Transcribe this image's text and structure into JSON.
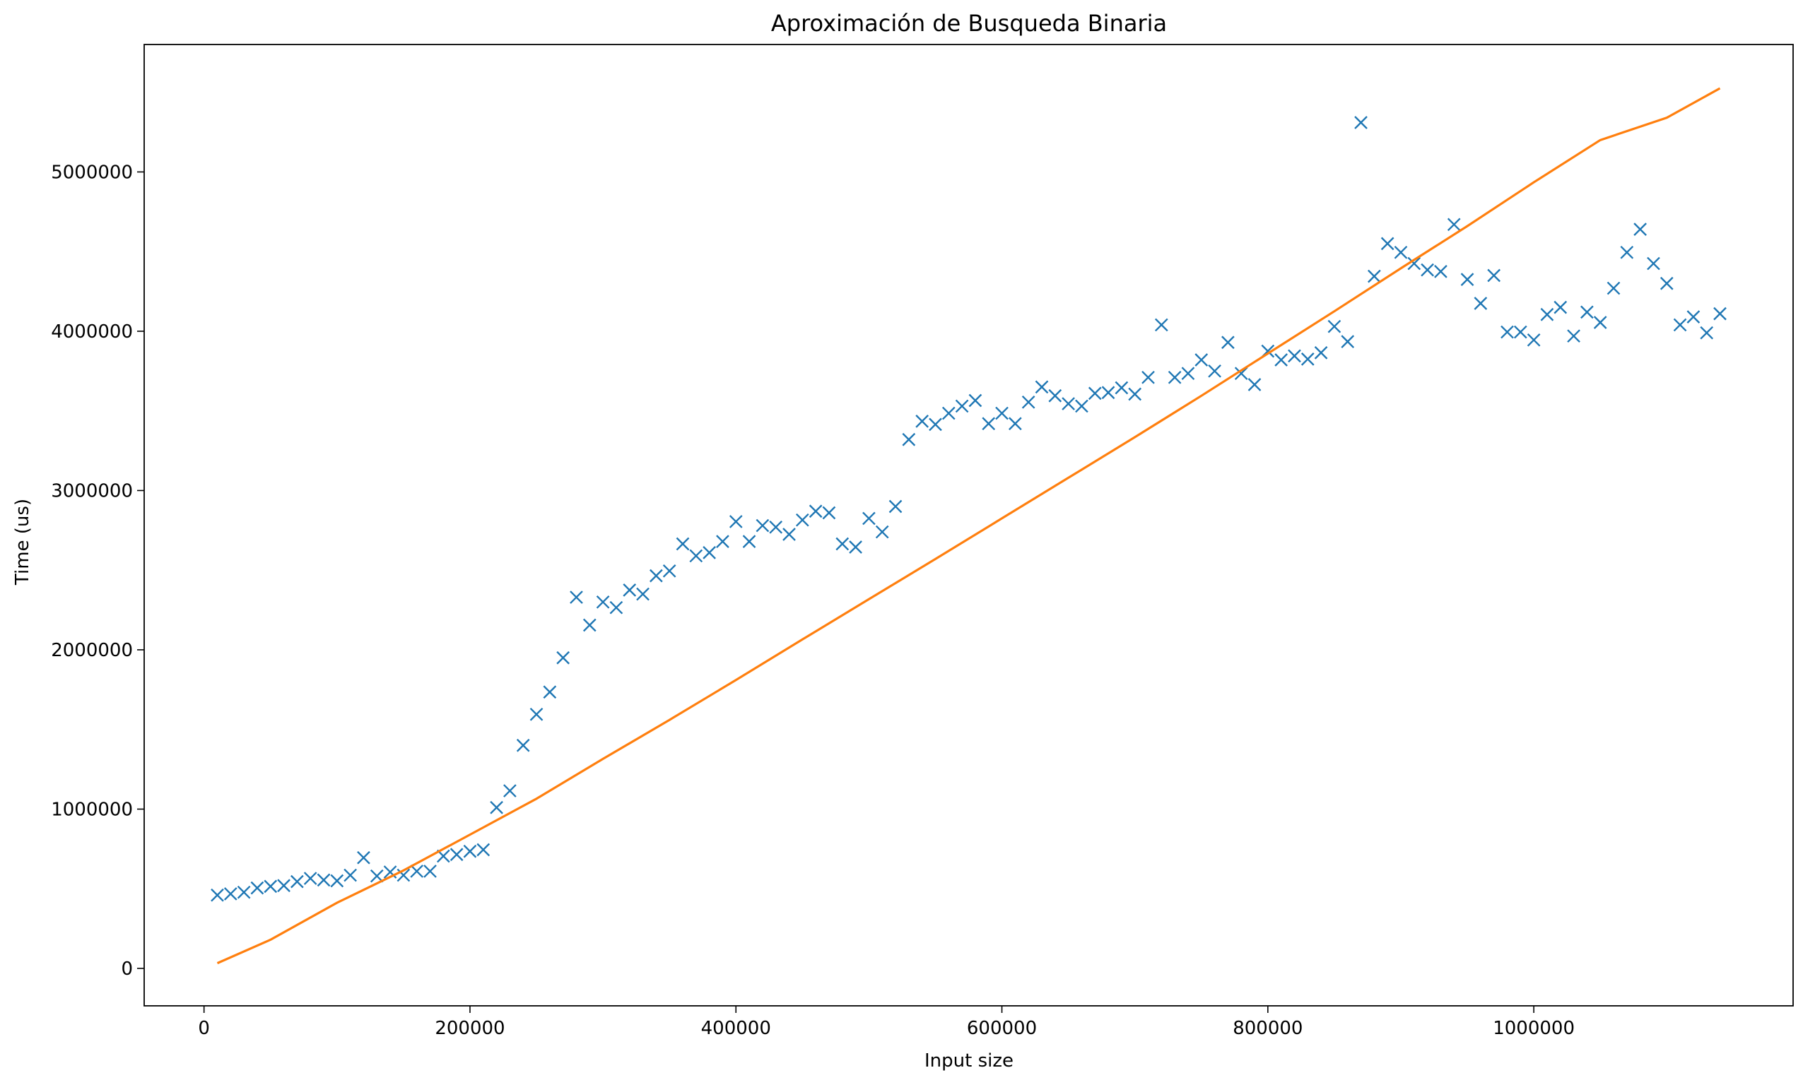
{
  "chart_data": {
    "type": "scatter",
    "title": "Aproximación de Busqueda Binaria",
    "xlabel": "Input size",
    "ylabel": "Time (us)",
    "xlim": [
      -45000,
      1195000
    ],
    "ylim": [
      -235000,
      5800000
    ],
    "x_ticks": [
      0,
      200000,
      400000,
      600000,
      800000,
      1000000
    ],
    "x_tick_labels": [
      "0",
      "200000",
      "400000",
      "600000",
      "800000",
      "1000000"
    ],
    "y_ticks": [
      0,
      1000000,
      2000000,
      3000000,
      4000000,
      5000000
    ],
    "y_tick_labels": [
      "0",
      "1000000",
      "2000000",
      "3000000",
      "4000000",
      "5000000"
    ],
    "grid": false,
    "legend": "none",
    "series": [
      {
        "marker": "x",
        "color": "#1f77b4",
        "x": [
          10000,
          20000,
          30000,
          40000,
          50000,
          60000,
          70000,
          80000,
          90000,
          100000,
          110000,
          120000,
          130000,
          140000,
          150000,
          160000,
          170000,
          180000,
          190000,
          200000,
          210000,
          220000,
          230000,
          240000,
          250000,
          260000,
          270000,
          280000,
          290000,
          300000,
          310000,
          320000,
          330000,
          340000,
          350000,
          360000,
          370000,
          380000,
          390000,
          400000,
          410000,
          420000,
          430000,
          440000,
          450000,
          460000,
          470000,
          480000,
          490000,
          500000,
          510000,
          520000,
          530000,
          540000,
          550000,
          560000,
          570000,
          580000,
          590000,
          600000,
          610000,
          620000,
          630000,
          640000,
          650000,
          660000,
          670000,
          680000,
          690000,
          700000,
          710000,
          720000,
          730000,
          740000,
          750000,
          760000,
          770000,
          780000,
          790000,
          800000,
          810000,
          820000,
          830000,
          840000,
          850000,
          860000,
          870000,
          880000,
          890000,
          900000,
          910000,
          920000,
          930000,
          940000,
          950000,
          960000,
          970000,
          980000,
          990000,
          1000000,
          1010000,
          1020000,
          1030000,
          1040000,
          1050000,
          1060000,
          1070000,
          1080000,
          1090000,
          1100000,
          1110000,
          1120000,
          1130000,
          1140000
        ],
        "y": [
          460000,
          468000,
          478000,
          505000,
          515000,
          520000,
          545000,
          565000,
          555000,
          550000,
          585000,
          695000,
          580000,
          605000,
          585000,
          610000,
          610000,
          705000,
          715000,
          735000,
          745000,
          1010000,
          1115000,
          1400000,
          1595000,
          1735000,
          1950000,
          2330000,
          2155000,
          2300000,
          2265000,
          2375000,
          2350000,
          2465000,
          2495000,
          2665000,
          2590000,
          2610000,
          2680000,
          2805000,
          2680000,
          2780000,
          2770000,
          2725000,
          2815000,
          2870000,
          2860000,
          2665000,
          2645000,
          2825000,
          2740000,
          2900000,
          3320000,
          3435000,
          3415000,
          3485000,
          3530000,
          3565000,
          3420000,
          3485000,
          3420000,
          3555000,
          3650000,
          3595000,
          3545000,
          3530000,
          3610000,
          3615000,
          3645000,
          3605000,
          3710000,
          4040000,
          3710000,
          3735000,
          3820000,
          3750000,
          3930000,
          3735000,
          3665000,
          3875000,
          3820000,
          3845000,
          3825000,
          3865000,
          4030000,
          3935000,
          5310000,
          4345000,
          4550000,
          4495000,
          4425000,
          4385000,
          4375000,
          4670000,
          4325000,
          4175000,
          4350000,
          3995000,
          3995000,
          3945000,
          4105000,
          4150000,
          3970000,
          4120000,
          4055000,
          4270000,
          4495000,
          4640000,
          4425000,
          4300000,
          4040000,
          4090000,
          3990000,
          4110000
        ]
      },
      {
        "marker": "line",
        "color": "#ff7f0e",
        "x": [
          10000,
          50000,
          100000,
          150000,
          200000,
          250000,
          300000,
          350000,
          400000,
          450000,
          500000,
          550000,
          600000,
          650000,
          700000,
          750000,
          800000,
          850000,
          900000,
          950000,
          1000000,
          1050000,
          1100000,
          1140000
        ],
        "y": [
          33000,
          180000,
          412000,
          615000,
          840000,
          1065000,
          1315000,
          1560000,
          1810000,
          2065000,
          2318000,
          2570000,
          2825000,
          3080000,
          3335000,
          3595000,
          3860000,
          4125000,
          4395000,
          4660000,
          4935000,
          5200000,
          5340000,
          5525000
        ]
      }
    ]
  }
}
